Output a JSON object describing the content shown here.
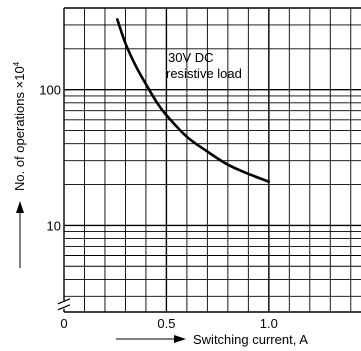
{
  "chart_data": {
    "type": "line",
    "title": "",
    "xlabel": "Switching current, A",
    "ylabel": "No. of operations ×10⁴",
    "y_label_main": "No. of operations ×10",
    "y_label_exponent": "4",
    "x_scale": "linear",
    "y_scale": "log",
    "xlim": [
      0,
      1.45
    ],
    "ylim": [
      2.3,
      400
    ],
    "x_ticks": [
      {
        "value": 0,
        "label": "0"
      },
      {
        "value": 0.5,
        "label": "0.5"
      },
      {
        "value": 1.0,
        "label": "1.0"
      }
    ],
    "y_ticks": [
      {
        "value": 10,
        "label": "10"
      },
      {
        "value": 100,
        "label": "100"
      }
    ],
    "axis_break": "y-axis, between 2 and 3",
    "grid": true,
    "series": [
      {
        "name": "30V DC resistive load",
        "label_lines": [
          "30V DC",
          "resistive load"
        ],
        "x": [
          0.26,
          0.3,
          0.35,
          0.4,
          0.45,
          0.5,
          0.6,
          0.7,
          0.8,
          0.9,
          1.0
        ],
        "y": [
          330,
          220,
          150,
          110,
          82,
          65,
          45,
          35,
          28,
          24,
          21
        ]
      }
    ],
    "colors": {
      "line": "#000000",
      "grid": "#000000",
      "background": "#ffffff"
    }
  }
}
